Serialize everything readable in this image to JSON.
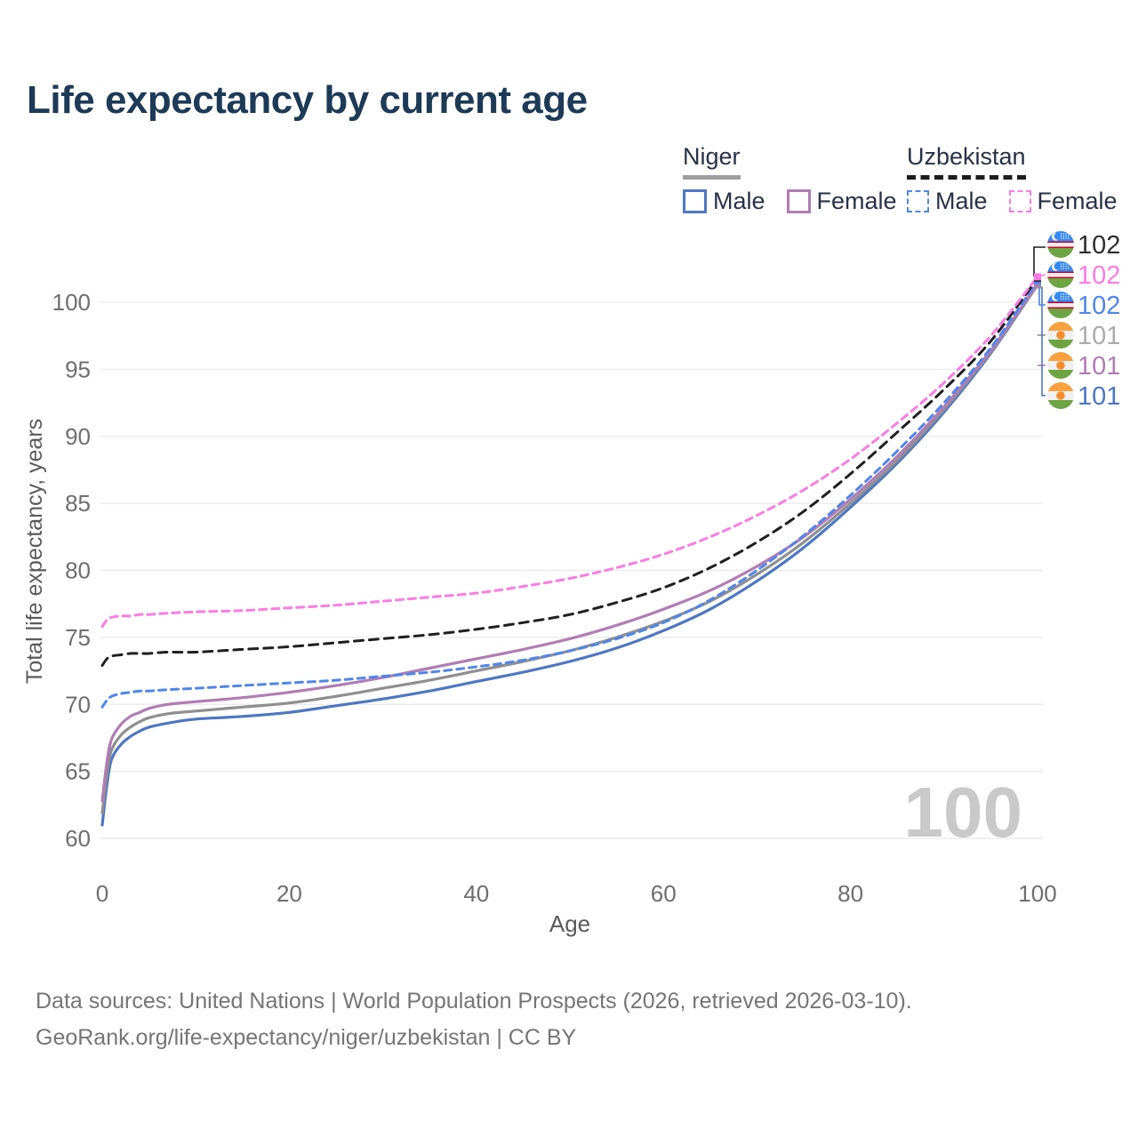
{
  "title": "Life expectancy by current age",
  "legend": {
    "groups": [
      {
        "title": "Niger",
        "line_style": "solid",
        "line_color": "#9e9e9e",
        "items": [
          {
            "label": "Male",
            "color": "#4D77C4",
            "dashed": false
          },
          {
            "label": "Female",
            "color": "#B17CB4",
            "dashed": false
          }
        ]
      },
      {
        "title": "Uzbekistan",
        "line_style": "dashed",
        "line_color": "#1c1c1c",
        "items": [
          {
            "label": "Male",
            "color": "#4F86EC",
            "dashed": true
          },
          {
            "label": "Female",
            "color": "#FC7BE2",
            "dashed": true
          }
        ]
      }
    ]
  },
  "chart_data": {
    "type": "line",
    "xlabel": "Age",
    "ylabel": "Total life expectancy, years",
    "xlim": [
      0,
      100
    ],
    "ylim": [
      60,
      102
    ],
    "x_ticks": [
      0,
      20,
      40,
      60,
      80,
      100
    ],
    "y_ticks": [
      60,
      65,
      70,
      75,
      80,
      85,
      90,
      95,
      100
    ],
    "grid": "horizontal",
    "watermark_age": "100",
    "ages": [
      0,
      0.5,
      1,
      2,
      3,
      4,
      5,
      7,
      10,
      15,
      20,
      25,
      30,
      35,
      40,
      45,
      50,
      55,
      60,
      65,
      70,
      75,
      80,
      85,
      90,
      95,
      100
    ],
    "series": [
      {
        "id": "niger-male",
        "name": "Niger Male",
        "country": "Niger",
        "sex": "Male",
        "color": "#4D77C4",
        "dashed": false,
        "values": [
          61.0,
          64.0,
          65.9,
          67.0,
          67.6,
          68.0,
          68.3,
          68.6,
          68.9,
          69.1,
          69.4,
          69.9,
          70.4,
          71.0,
          71.7,
          72.4,
          73.2,
          74.2,
          75.5,
          77.1,
          79.2,
          81.7,
          84.7,
          88.0,
          91.8,
          96.2,
          101.3
        ]
      },
      {
        "id": "niger-both",
        "name": "Niger",
        "country": "Niger",
        "sex": "Both sexes",
        "color": "#8F8F8F",
        "dashed": false,
        "values": [
          61.9,
          64.8,
          66.6,
          67.7,
          68.3,
          68.7,
          69.0,
          69.3,
          69.5,
          69.8,
          70.1,
          70.6,
          71.2,
          71.8,
          72.5,
          73.2,
          74.0,
          75.0,
          76.2,
          77.7,
          79.7,
          82.1,
          85.0,
          88.2,
          92.0,
          96.3,
          101.3
        ]
      },
      {
        "id": "niger-female",
        "name": "Niger Female",
        "country": "Niger",
        "sex": "Female",
        "color": "#B17CB4",
        "dashed": false,
        "values": [
          62.8,
          65.7,
          67.4,
          68.5,
          69.1,
          69.4,
          69.7,
          70.0,
          70.2,
          70.5,
          70.9,
          71.4,
          72.0,
          72.7,
          73.4,
          74.1,
          74.9,
          75.9,
          77.1,
          78.5,
          80.3,
          82.5,
          85.3,
          88.5,
          92.2,
          96.4,
          101.4
        ]
      },
      {
        "id": "uzbekistan-male",
        "name": "Uzbekistan Male",
        "country": "Uzbekistan",
        "sex": "Male",
        "color": "#4F86EC",
        "dashed": true,
        "values": [
          69.8,
          70.3,
          70.6,
          70.8,
          70.9,
          71.0,
          71.0,
          71.1,
          71.2,
          71.4,
          71.6,
          71.8,
          72.1,
          72.4,
          72.8,
          73.3,
          74.0,
          74.9,
          76.1,
          77.8,
          80.0,
          82.6,
          85.6,
          88.9,
          92.5,
          96.6,
          101.6
        ]
      },
      {
        "id": "uzbekistan-both",
        "name": "Uzbekistan",
        "country": "Uzbekistan",
        "sex": "Both sexes",
        "color": "#1F1F1F",
        "dashed": true,
        "values": [
          72.9,
          73.4,
          73.6,
          73.7,
          73.8,
          73.8,
          73.8,
          73.9,
          73.9,
          74.1,
          74.3,
          74.6,
          74.9,
          75.2,
          75.6,
          76.1,
          76.7,
          77.6,
          78.7,
          80.2,
          82.1,
          84.4,
          87.2,
          90.3,
          93.5,
          97.1,
          101.8
        ]
      },
      {
        "id": "uzbekistan-female",
        "name": "Uzbekistan Female",
        "country": "Uzbekistan",
        "sex": "Female",
        "color": "#FC7BE2",
        "dashed": true,
        "values": [
          75.8,
          76.3,
          76.5,
          76.6,
          76.6,
          76.7,
          76.7,
          76.8,
          76.9,
          77.0,
          77.2,
          77.4,
          77.7,
          78.0,
          78.3,
          78.8,
          79.4,
          80.2,
          81.2,
          82.5,
          84.1,
          86.0,
          88.3,
          91.0,
          94.0,
          97.5,
          101.9
        ]
      }
    ],
    "end_labels": [
      {
        "series_id": "uzbekistan-both",
        "flag": "uzbekistan",
        "value": "102",
        "color": "#2E2E2E"
      },
      {
        "series_id": "uzbekistan-female",
        "flag": "uzbekistan",
        "value": "102",
        "color": "#FC7BE2"
      },
      {
        "series_id": "uzbekistan-male",
        "flag": "uzbekistan",
        "value": "102",
        "color": "#4F86EC"
      },
      {
        "series_id": "niger-both",
        "flag": "niger",
        "value": "101",
        "color": "#ABABAB"
      },
      {
        "series_id": "niger-female",
        "flag": "niger",
        "value": "101",
        "color": "#B17CB4"
      },
      {
        "series_id": "niger-male",
        "flag": "niger",
        "value": "101",
        "color": "#4D77C4"
      }
    ]
  },
  "footer": {
    "line1": "Data sources: United Nations | World Population Prospects (2026, retrieved 2026-03-10).",
    "line2": "GeoRank.org/life-expectancy/niger/uzbekistan | CC BY"
  }
}
